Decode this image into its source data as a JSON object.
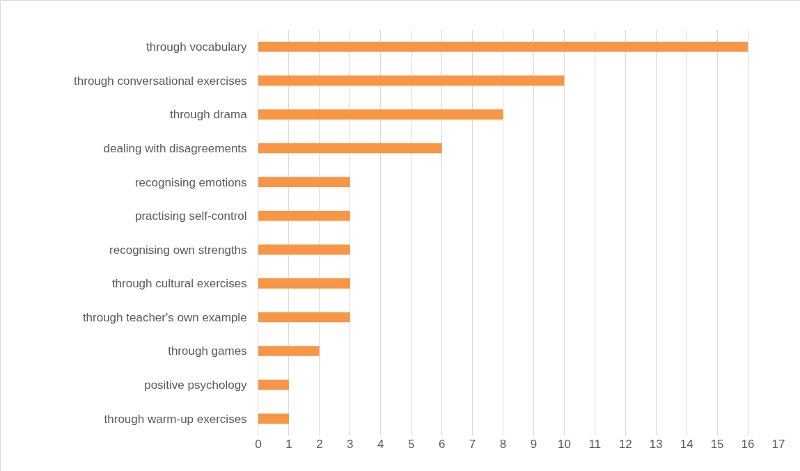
{
  "chart_data": {
    "type": "bar",
    "orientation": "horizontal",
    "categories": [
      "through vocabulary",
      "through conversational exercises",
      "through drama",
      "dealing with disagreements",
      "recognising emotions",
      "practising self-control",
      "recognising own strengths",
      "through cultural exercises",
      "through teacher's own example",
      "through games",
      "positive psychology",
      "through warm-up exercises"
    ],
    "values": [
      16,
      10,
      8,
      6,
      3,
      3,
      3,
      3,
      3,
      2,
      1,
      1
    ],
    "color": "#f79646",
    "xlim": [
      0,
      17
    ],
    "xticks": [
      0,
      1,
      2,
      3,
      4,
      5,
      6,
      7,
      8,
      9,
      10,
      11,
      12,
      13,
      14,
      15,
      16,
      17
    ],
    "grid": "x"
  }
}
